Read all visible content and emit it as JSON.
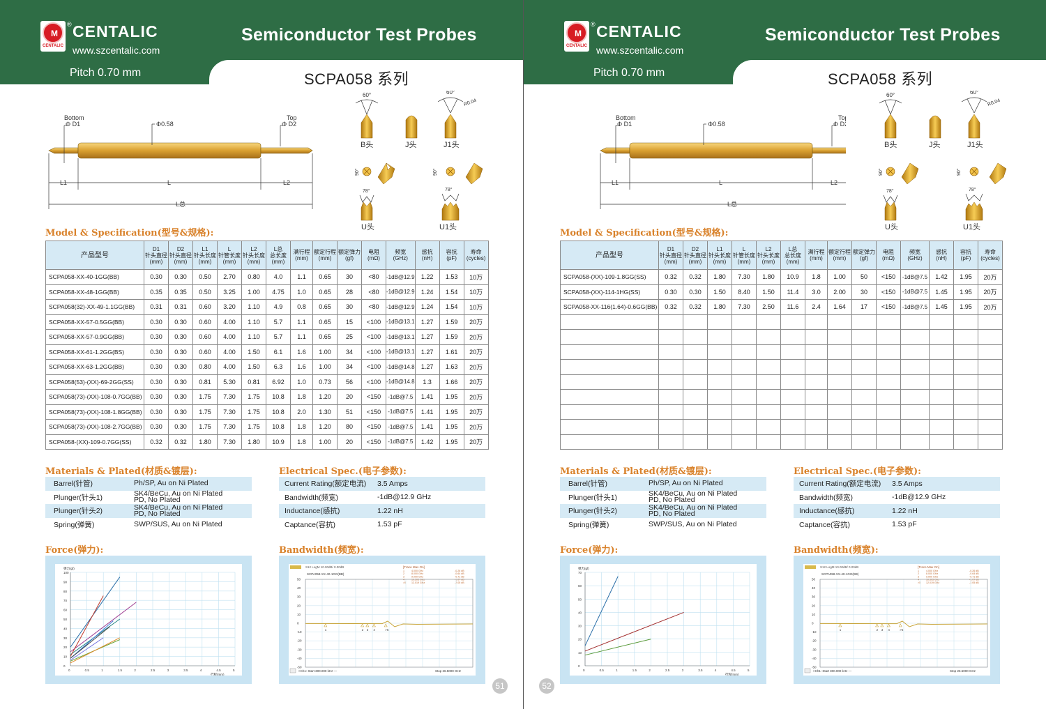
{
  "header": {
    "brand": "CENTALIC",
    "reg_mark": "®",
    "logo_caption": "CENTALIC",
    "url": "www.szcentalic.com",
    "pitch": "Pitch 0.70 mm",
    "title": "Semiconductor  Test Probes",
    "series": "SCPA058 系列"
  },
  "diagram": {
    "bottom": "Bottom",
    "bottom_d": "Φ D1",
    "top": "Top",
    "top_d": "Φ D2",
    "body_d": "Φ0.58",
    "l1": "L1",
    "l": "L",
    "l2": "L2",
    "ltotal": "L总"
  },
  "tips": {
    "b": "B头",
    "j": "J头",
    "j1": "J1头",
    "u": "U头",
    "u1": "U1头",
    "angle60": "60°",
    "r004": "R0.04",
    "angle90": "90°",
    "angle78": "78°"
  },
  "sections": {
    "model_spec": "Model & Specification(型号&规格):",
    "materials": "Materials & Plated(材质&镀层):",
    "electrical": "Electrical Spec.(电子参数):",
    "force": "Force(弹力):",
    "bandwidth": "Bandwidth(频宽):"
  },
  "table_headers": [
    {
      "l1": "产品型号"
    },
    {
      "l1": "D1",
      "l2": "针头直径",
      "l3": "(mm)"
    },
    {
      "l1": "D2",
      "l2": "针头直径",
      "l3": "(mm)"
    },
    {
      "l1": "L1",
      "l2": "针头长度",
      "l3": "(mm)"
    },
    {
      "l1": "L",
      "l2": "针管长度",
      "l3": "(mm)"
    },
    {
      "l1": "L2",
      "l2": "针头长度",
      "l3": "(mm)"
    },
    {
      "l1": "L总",
      "l2": "总长度",
      "l3": "(mm)"
    },
    {
      "l1": "",
      "l2": "满行程",
      "l3": "(mm)"
    },
    {
      "l1": "",
      "l2": "额定行程",
      "l3": "(mm)"
    },
    {
      "l1": "",
      "l2": "额定弹力",
      "l3": "(gf)"
    },
    {
      "l1": "电阻",
      "l2": "",
      "l3": "(mΩ)"
    },
    {
      "l1": "频宽",
      "l2": "",
      "l3": "(GHz)"
    },
    {
      "l1": "感抗",
      "l2": "",
      "l3": "(nH)"
    },
    {
      "l1": "容抗",
      "l2": "",
      "l3": "(pF)"
    },
    {
      "l1": "寿命",
      "l2": "",
      "l3": "(cycles)"
    }
  ],
  "left_rows": [
    [
      "SCPA058-XX-40-1GG(BB)",
      "0.30",
      "0.30",
      "0.50",
      "2.70",
      "0.80",
      "4.0",
      "1.1",
      "0.65",
      "30",
      "<80",
      "-1dB@12.9",
      "1.22",
      "1.53",
      "10万"
    ],
    [
      "SCPA058-XX-48-1GG(BB)",
      "0.35",
      "0.35",
      "0.50",
      "3.25",
      "1.00",
      "4.75",
      "1.0",
      "0.65",
      "28",
      "<80",
      "-1dB@12.9",
      "1.24",
      "1.54",
      "10万"
    ],
    [
      "SCPA058(32)-XX-49-1.1GG(BB)",
      "0.31",
      "0.31",
      "0.60",
      "3.20",
      "1.10",
      "4.9",
      "0.8",
      "0.65",
      "30",
      "<80",
      "-1dB@12.9",
      "1.24",
      "1.54",
      "10万"
    ],
    [
      "SCPA058-XX-57-0.5GG(BB)",
      "0.30",
      "0.30",
      "0.60",
      "4.00",
      "1.10",
      "5.7",
      "1.1",
      "0.65",
      "15",
      "<100",
      "-1dB@13.1",
      "1.27",
      "1.59",
      "20万"
    ],
    [
      "SCPA058-XX-57-0.9GG(BB)",
      "0.30",
      "0.30",
      "0.60",
      "4.00",
      "1.10",
      "5.7",
      "1.1",
      "0.65",
      "25",
      "<100",
      "-1dB@13.1",
      "1.27",
      "1.59",
      "20万"
    ],
    [
      "SCPA058-XX-61-1.2GG(BS)",
      "0.30",
      "0.30",
      "0.60",
      "4.00",
      "1.50",
      "6.1",
      "1.6",
      "1.00",
      "34",
      "<100",
      "-1dB@13.1",
      "1.27",
      "1.61",
      "20万"
    ],
    [
      "SCPA058-XX-63-1.2GG(BB)",
      "0.30",
      "0.30",
      "0.80",
      "4.00",
      "1.50",
      "6.3",
      "1.6",
      "1.00",
      "34",
      "<100",
      "-1dB@14.8",
      "1.27",
      "1.63",
      "20万"
    ],
    [
      "SCPA058(53)-(XX)-69-2GG(SS)",
      "0.30",
      "0.30",
      "0.81",
      "5.30",
      "0.81",
      "6.92",
      "1.0",
      "0.73",
      "56",
      "<100",
      "-1dB@14.8",
      "1.3",
      "1.66",
      "20万"
    ],
    [
      "SCPA058(73)-(XX)-108-0.7GG(BB)",
      "0.30",
      "0.30",
      "1.75",
      "7.30",
      "1.75",
      "10.8",
      "1.8",
      "1.20",
      "20",
      "<150",
      "-1dB@7.5",
      "1.41",
      "1.95",
      "20万"
    ],
    [
      "SCPA058(73)-(XX)-108-1.8GG(BB)",
      "0.30",
      "0.30",
      "1.75",
      "7.30",
      "1.75",
      "10.8",
      "2.0",
      "1.30",
      "51",
      "<150",
      "-1dB@7.5",
      "1.41",
      "1.95",
      "20万"
    ],
    [
      "SCPA058(73)-(XX)-108-2.7GG(BB)",
      "0.30",
      "0.30",
      "1.75",
      "7.30",
      "1.75",
      "10.8",
      "1.8",
      "1.20",
      "80",
      "<150",
      "-1dB@7.5",
      "1.41",
      "1.95",
      "20万"
    ],
    [
      "SCPA058-(XX)-109-0.7GG(SS)",
      "0.32",
      "0.32",
      "1.80",
      "7.30",
      "1.80",
      "10.9",
      "1.8",
      "1.00",
      "20",
      "<150",
      "-1dB@7.5",
      "1.42",
      "1.95",
      "20万"
    ]
  ],
  "right_rows": [
    [
      "SCPA058-(XX)-109-1.8GG(SS)",
      "0.32",
      "0.32",
      "1.80",
      "7.30",
      "1.80",
      "10.9",
      "1.8",
      "1.00",
      "50",
      "<150",
      "-1dB@7.5",
      "1.42",
      "1.95",
      "20万"
    ],
    [
      "SCPA058-(XX)-114-1HG(SS)",
      "0.30",
      "0.30",
      "1.50",
      "8.40",
      "1.50",
      "11.4",
      "3.0",
      "2.00",
      "30",
      "<150",
      "-1dB@7.5",
      "1.45",
      "1.95",
      "20万"
    ],
    [
      "SCPA058-XX-116(1.64)-0.6GG(BB)",
      "0.32",
      "0.32",
      "1.80",
      "7.30",
      "2.50",
      "11.6",
      "2.4",
      "1.64",
      "17",
      "<150",
      "-1dB@7.5",
      "1.45",
      "1.95",
      "20万"
    ],
    [
      "",
      "",
      "",
      "",
      "",
      "",
      "",
      "",
      "",
      "",
      "",
      "",
      "",
      "",
      ""
    ],
    [
      "",
      "",
      "",
      "",
      "",
      "",
      "",
      "",
      "",
      "",
      "",
      "",
      "",
      "",
      ""
    ],
    [
      "",
      "",
      "",
      "",
      "",
      "",
      "",
      "",
      "",
      "",
      "",
      "",
      "",
      "",
      ""
    ],
    [
      "",
      "",
      "",
      "",
      "",
      "",
      "",
      "",
      "",
      "",
      "",
      "",
      "",
      "",
      ""
    ],
    [
      "",
      "",
      "",
      "",
      "",
      "",
      "",
      "",
      "",
      "",
      "",
      "",
      "",
      "",
      ""
    ],
    [
      "",
      "",
      "",
      "",
      "",
      "",
      "",
      "",
      "",
      "",
      "",
      "",
      "",
      "",
      ""
    ],
    [
      "",
      "",
      "",
      "",
      "",
      "",
      "",
      "",
      "",
      "",
      "",
      "",
      "",
      "",
      ""
    ],
    [
      "",
      "",
      "",
      "",
      "",
      "",
      "",
      "",
      "",
      "",
      "",
      "",
      "",
      "",
      ""
    ],
    [
      "",
      "",
      "",
      "",
      "",
      "",
      "",
      "",
      "",
      "",
      "",
      "",
      "",
      "",
      ""
    ]
  ],
  "materials": [
    {
      "k": "Barrel(针管)",
      "v1": "Ph/SP, Au on Ni Plated",
      "v2": ""
    },
    {
      "k": "Plunger(针头1)",
      "v1": "SK4/BeCu, Au on Ni Plated",
      "v2": "PD, No Plated"
    },
    {
      "k": "Plunger(针头2)",
      "v1": "SK4/BeCu, Au on Ni Plated",
      "v2": "PD, No Plated"
    },
    {
      "k": "Spring(弹簧)",
      "v1": "SWP/SUS, Au on Ni Plated",
      "v2": ""
    }
  ],
  "electrical": [
    {
      "k": "Current Rating(额定电流)",
      "v": "3.5 Amps"
    },
    {
      "k": "Bandwidth(频宽)",
      "v": "-1dB@12.9 GHz"
    },
    {
      "k": "Inductance(感抗)",
      "v": "1.22 nH"
    },
    {
      "k": "Captance(容抗)",
      "v": "1.53 pF"
    }
  ],
  "chart_data": [
    {
      "type": "line",
      "chart": "force-left",
      "ylabel": "弹力(gf)",
      "xlabel": "行程(mm)",
      "xticks": [
        "0",
        "0.5",
        "1",
        "1.5",
        "2",
        "2.5",
        "3",
        "3.5",
        "4",
        "4.5",
        "5"
      ],
      "yticks": [
        "0",
        "10",
        "20",
        "30",
        "40",
        "50",
        "60",
        "70",
        "80",
        "90",
        "100"
      ],
      "xlim": [
        0,
        5
      ],
      "ylim": [
        0,
        100
      ],
      "series": [
        {
          "color": "#2a6ea8",
          "x": [
            0,
            1.5
          ],
          "y": [
            20,
            95
          ]
        },
        {
          "color": "#9c3a8f",
          "x": [
            0,
            2
          ],
          "y": [
            15,
            68
          ]
        },
        {
          "color": "#2d8a8a",
          "x": [
            0,
            1.5
          ],
          "y": [
            12,
            50
          ]
        },
        {
          "color": "#c0392b",
          "x": [
            0,
            1.0
          ],
          "y": [
            10,
            75
          ]
        },
        {
          "color": "#3b7dd8",
          "x": [
            0,
            1.3
          ],
          "y": [
            8,
            48
          ]
        },
        {
          "color": "#6ca83a",
          "x": [
            0,
            1.5
          ],
          "y": [
            5,
            28
          ]
        },
        {
          "color": "#e08a2a",
          "x": [
            0,
            1.5
          ],
          "y": [
            3,
            30
          ]
        },
        {
          "color": "#444444",
          "x": [
            0,
            1.2
          ],
          "y": [
            8,
            42
          ]
        },
        {
          "color": "#7a7ae0",
          "x": [
            0,
            1.0
          ],
          "y": [
            6,
            30
          ]
        }
      ]
    },
    {
      "type": "line",
      "chart": "force-right",
      "ylabel": "弹力(gf)",
      "xlabel": "行程(mm)",
      "xticks": [
        "0",
        "0.5",
        "1",
        "1.5",
        "2",
        "2.5",
        "3",
        "3.5",
        "4",
        "4.5",
        "5"
      ],
      "yticks": [
        "0",
        "10",
        "20",
        "30",
        "40",
        "50",
        "60",
        "70"
      ],
      "xlim": [
        0,
        5
      ],
      "ylim": [
        0,
        70
      ],
      "series": [
        {
          "color": "#2a6ea8",
          "x": [
            0,
            1.0
          ],
          "y": [
            15,
            67
          ]
        },
        {
          "color": "#a33030",
          "x": [
            0,
            3.0
          ],
          "y": [
            11,
            40
          ]
        },
        {
          "color": "#5a9a3a",
          "x": [
            0,
            2.0
          ],
          "y": [
            8,
            20
          ]
        }
      ]
    },
    {
      "type": "line",
      "chart": "bandwidth",
      "header": "S12 LogM 10.00dB/ 0.00dB",
      "marker_title": "[Trace Max On]",
      "trace_label": "SCPA058-XX-40-1GG(BB)",
      "footer_left": ">Ch1: Start  300.000 kHz —",
      "footer_right": "Stop  26.5000 GHz",
      "markers": [
        {
          "id": "1",
          "freq": "4.000 GHz",
          "val": "-0.26 dB"
        },
        {
          "id": "2",
          "freq": "8.000 GHz",
          "val": "-0.64 dB"
        },
        {
          "id": "3",
          "freq": "9.000 GHz",
          "val": "-0.71 dB"
        },
        {
          "id": "4",
          "freq": "10.303 GHz",
          "val": "-1.07 dB"
        },
        {
          "id": ">5",
          "freq": "12.019 GHz",
          "val": "-2.05 dB"
        }
      ],
      "yticks": [
        "50",
        "40",
        "30",
        "20",
        "10",
        "0",
        "-10",
        "-20",
        "-30",
        "-40",
        "-50"
      ],
      "ylim": [
        -50,
        50
      ]
    }
  ],
  "page_numbers": {
    "left": "51",
    "right": "52"
  }
}
